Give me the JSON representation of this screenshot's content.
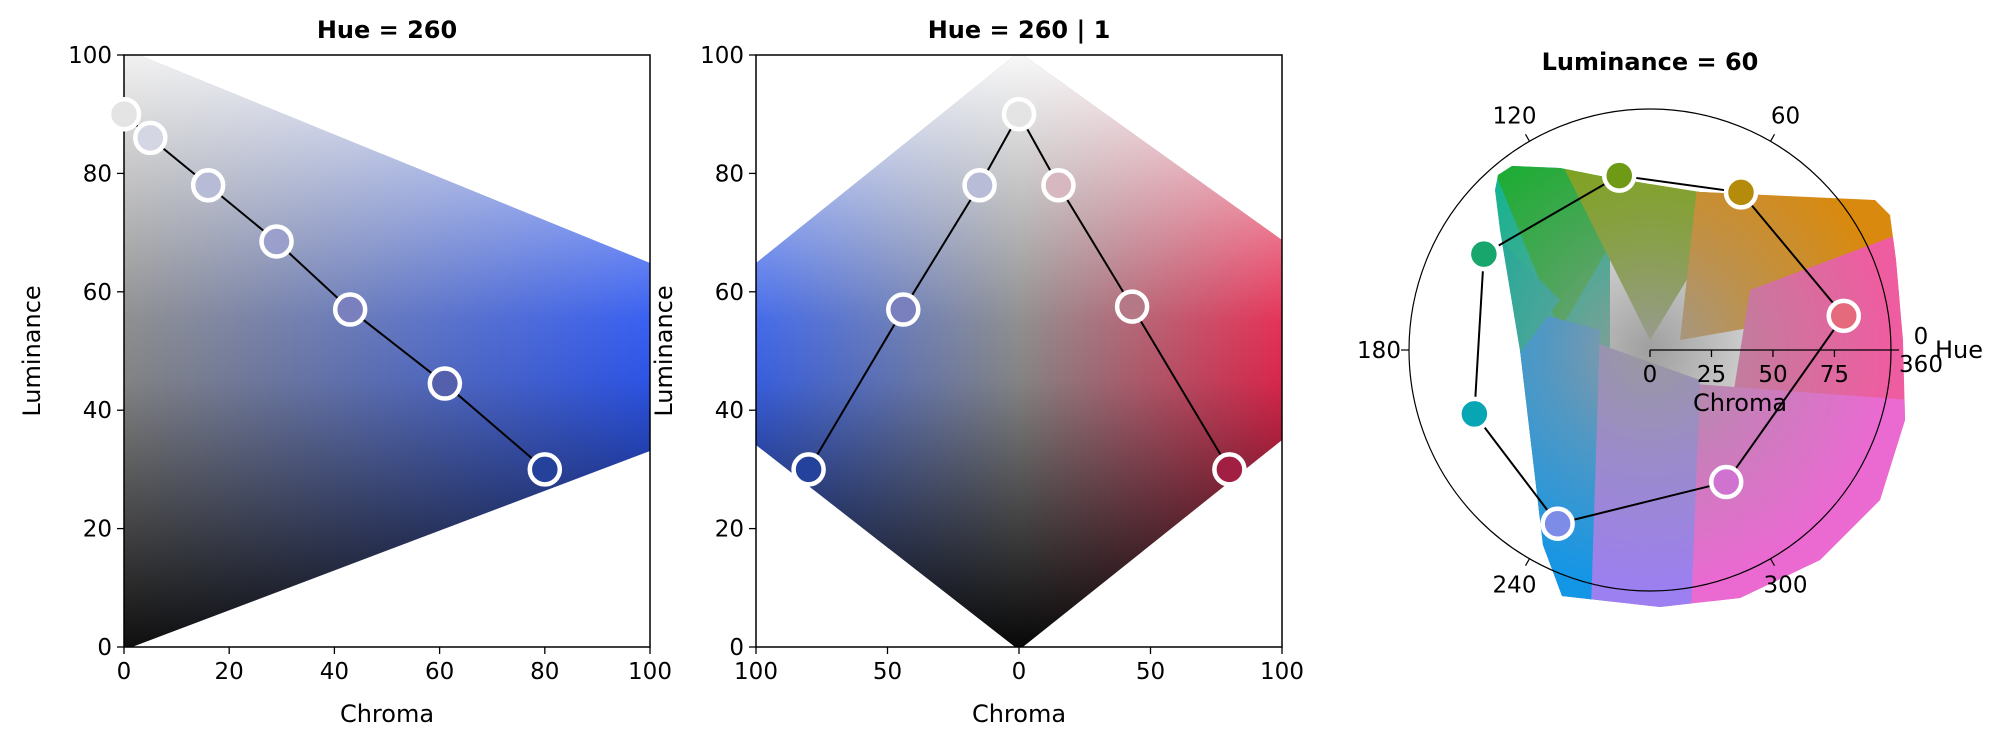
{
  "colors": {
    "line": "#000000",
    "marker_edge": "#ffffff",
    "axes": "#000000"
  },
  "chart_data": [
    {
      "type": "scatter",
      "title": "Hue = 260",
      "xlabel": "Chroma",
      "ylabel": "Luminance",
      "xlim": [
        0,
        100
      ],
      "ylim": [
        0,
        100
      ],
      "xticks": [
        0,
        20,
        40,
        60,
        80,
        100
      ],
      "xtick_labels": [
        "0",
        "20",
        "40",
        "60",
        "80",
        "100"
      ],
      "yticks": [
        0,
        20,
        40,
        60,
        80,
        100
      ],
      "ytick_labels": [
        "0",
        "20",
        "40",
        "60",
        "80",
        "100"
      ],
      "background": "single-hue HCL gradient, hue 260",
      "series": [
        {
          "x": [
            0,
            5,
            16,
            29,
            43,
            61,
            80
          ],
          "y": [
            90,
            86,
            78,
            68.5,
            57,
            44.5,
            30
          ],
          "colors": [
            "#e4e4e4",
            "#d4d6e3",
            "#b7bbd6",
            "#9aa0cb",
            "#7980bd",
            "#5560ad",
            "#24429c"
          ]
        }
      ]
    },
    {
      "type": "scatter",
      "title": "Hue = 260 | 1",
      "xlabel": "Chroma",
      "ylabel": "Luminance",
      "xlim": [
        -100,
        100
      ],
      "ylim": [
        0,
        100
      ],
      "xticks": [
        -100,
        -50,
        0,
        50,
        100
      ],
      "xtick_labels": [
        "100",
        "50",
        "0",
        "50",
        "100"
      ],
      "yticks": [
        0,
        20,
        40,
        60,
        80,
        100
      ],
      "ytick_labels": [
        "0",
        "20",
        "40",
        "60",
        "80",
        "100"
      ],
      "background": "diverging HCL gradient, hue 260 to hue 1",
      "series": [
        {
          "x": [
            -80,
            -44,
            -15,
            0,
            15,
            43,
            80
          ],
          "y": [
            30,
            57,
            78,
            90,
            78,
            57.5,
            30
          ],
          "colors": [
            "#24429c",
            "#7a80be",
            "#b9bcd6",
            "#e4e4e4",
            "#d7b8c0",
            "#b57886",
            "#a21f44"
          ]
        }
      ]
    },
    {
      "type": "scatter",
      "title": "Luminance = 60",
      "projection": "polar",
      "theta_label": "Hue",
      "r_label": "Chroma",
      "theta_ticks": [
        0,
        60,
        120,
        180,
        240,
        300
      ],
      "theta_tick_labels": [
        "0\n360",
        "60",
        "120",
        "180",
        "240",
        "300"
      ],
      "r_ticks": [
        0,
        25,
        50,
        75
      ],
      "r_tick_labels": [
        "0",
        "25",
        "50",
        "75"
      ],
      "rlim": [
        0,
        98
      ],
      "background": "HCL hue wheel at luminance 60",
      "series": [
        {
          "hue": [
            10,
            60,
            100,
            150,
            200,
            242,
            300
          ],
          "chroma": [
            80,
            74,
            72,
            78,
            76,
            80,
            62
          ],
          "colors": [
            "#e46a7c",
            "#b58b0c",
            "#6f9a16",
            "#18a66d",
            "#08a5b5",
            "#7d8ce6",
            "#cf72d0"
          ]
        }
      ]
    }
  ]
}
